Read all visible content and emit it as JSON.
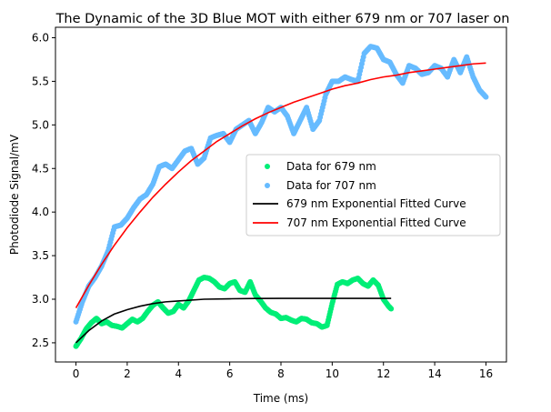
{
  "chart_data": {
    "type": "scatter",
    "title": "The Dynamic of the 3D Blue MOT with either 679 nm or 707 laser on",
    "xlabel": "Time (ms)",
    "ylabel": "Photodiode Signal/mV",
    "xlim": [
      -0.8,
      16.8
    ],
    "ylim": [
      2.28,
      6.12
    ],
    "xticks": [
      0,
      2,
      4,
      6,
      8,
      10,
      12,
      14,
      16
    ],
    "yticks": [
      2.5,
      3.0,
      3.5,
      4.0,
      4.5,
      5.0,
      5.5,
      6.0
    ],
    "xtick_labels": [
      "0",
      "2",
      "4",
      "6",
      "8",
      "10",
      "12",
      "14",
      "16"
    ],
    "ytick_labels": [
      "2.5",
      "3.0",
      "3.5",
      "4.0",
      "4.5",
      "5.0",
      "5.5",
      "6.0"
    ],
    "legend_position": "center-right",
    "series": [
      {
        "name": "Data for 679 nm",
        "kind": "scatter",
        "color": "#00ee77",
        "x": [
          0.0,
          0.2,
          0.4,
          0.6,
          0.8,
          1.0,
          1.2,
          1.4,
          1.6,
          1.8,
          2.0,
          2.2,
          2.4,
          2.6,
          2.8,
          3.0,
          3.2,
          3.4,
          3.6,
          3.8,
          4.0,
          4.2,
          4.4,
          4.6,
          4.8,
          5.0,
          5.2,
          5.4,
          5.6,
          5.8,
          6.0,
          6.2,
          6.4,
          6.6,
          6.8,
          7.0,
          7.2,
          7.4,
          7.6,
          7.8,
          8.0,
          8.2,
          8.4,
          8.6,
          8.8,
          9.0,
          9.2,
          9.4,
          9.6,
          9.8,
          10.0,
          10.2,
          10.4,
          10.6,
          10.8,
          11.0,
          11.2,
          11.4,
          11.6,
          11.8,
          12.0,
          12.2,
          12.3
        ],
        "y": [
          2.46,
          2.55,
          2.66,
          2.73,
          2.78,
          2.72,
          2.74,
          2.7,
          2.69,
          2.67,
          2.72,
          2.77,
          2.74,
          2.78,
          2.86,
          2.93,
          2.97,
          2.9,
          2.84,
          2.86,
          2.94,
          2.9,
          2.98,
          3.1,
          3.22,
          3.25,
          3.24,
          3.2,
          3.14,
          3.12,
          3.18,
          3.2,
          3.1,
          3.08,
          3.2,
          3.05,
          2.98,
          2.9,
          2.85,
          2.83,
          2.78,
          2.79,
          2.76,
          2.74,
          2.78,
          2.77,
          2.73,
          2.72,
          2.68,
          2.7,
          2.95,
          3.17,
          3.2,
          3.18,
          3.22,
          3.24,
          3.18,
          3.15,
          3.22,
          3.16,
          3.0,
          2.92,
          2.89
        ]
      },
      {
        "name": "Data for 707 nm",
        "kind": "scatter",
        "color": "#66bbff",
        "x": [
          0.0,
          0.25,
          0.5,
          0.75,
          1.0,
          1.25,
          1.5,
          1.75,
          2.0,
          2.25,
          2.5,
          2.75,
          3.0,
          3.25,
          3.5,
          3.75,
          4.0,
          4.25,
          4.5,
          4.75,
          5.0,
          5.25,
          5.5,
          5.75,
          6.0,
          6.25,
          6.5,
          6.75,
          7.0,
          7.25,
          7.5,
          7.75,
          8.0,
          8.25,
          8.5,
          8.75,
          9.0,
          9.25,
          9.5,
          9.75,
          10.0,
          10.25,
          10.5,
          10.75,
          11.0,
          11.25,
          11.5,
          11.75,
          12.0,
          12.25,
          12.5,
          12.75,
          13.0,
          13.25,
          13.5,
          13.75,
          14.0,
          14.25,
          14.5,
          14.75,
          15.0,
          15.25,
          15.5,
          15.75,
          16.0
        ],
        "y": [
          2.74,
          2.97,
          3.15,
          3.25,
          3.38,
          3.55,
          3.83,
          3.85,
          3.93,
          4.05,
          4.15,
          4.2,
          4.32,
          4.52,
          4.55,
          4.5,
          4.6,
          4.7,
          4.73,
          4.55,
          4.62,
          4.85,
          4.88,
          4.9,
          4.8,
          4.95,
          5.0,
          5.05,
          4.9,
          5.03,
          5.2,
          5.15,
          5.2,
          5.1,
          4.9,
          5.05,
          5.2,
          4.95,
          5.05,
          5.35,
          5.5,
          5.5,
          5.55,
          5.52,
          5.5,
          5.82,
          5.9,
          5.88,
          5.75,
          5.72,
          5.58,
          5.48,
          5.68,
          5.65,
          5.58,
          5.6,
          5.68,
          5.65,
          5.55,
          5.75,
          5.6,
          5.78,
          5.55,
          5.4,
          5.32
        ]
      },
      {
        "name": "679 nm Exponential Fitted Curve",
        "kind": "line",
        "color": "#000000",
        "x": [
          0,
          0.5,
          1,
          1.5,
          2,
          2.5,
          3,
          3.5,
          4,
          5,
          6,
          7,
          8,
          9,
          10,
          11,
          12,
          12.3
        ],
        "y": [
          2.5,
          2.64,
          2.75,
          2.83,
          2.88,
          2.92,
          2.95,
          2.97,
          2.98,
          3.0,
          3.005,
          3.008,
          3.01,
          3.01,
          3.01,
          3.01,
          3.01,
          3.01
        ]
      },
      {
        "name": "707 nm Exponential Fitted Curve",
        "kind": "line",
        "color": "#ff0000",
        "x": [
          0,
          0.5,
          1,
          1.5,
          2,
          2.5,
          3,
          3.5,
          4,
          4.5,
          5,
          5.5,
          6,
          6.5,
          7,
          7.5,
          8,
          8.5,
          9,
          9.5,
          10,
          10.5,
          11,
          11.5,
          12,
          12.5,
          13,
          13.5,
          14,
          14.5,
          15,
          15.5,
          16
        ],
        "y": [
          2.9,
          3.16,
          3.4,
          3.62,
          3.82,
          4.0,
          4.17,
          4.32,
          4.46,
          4.59,
          4.7,
          4.81,
          4.9,
          4.99,
          5.07,
          5.14,
          5.2,
          5.26,
          5.31,
          5.36,
          5.41,
          5.45,
          5.48,
          5.52,
          5.55,
          5.57,
          5.6,
          5.62,
          5.64,
          5.66,
          5.68,
          5.7,
          5.71
        ]
      }
    ]
  }
}
